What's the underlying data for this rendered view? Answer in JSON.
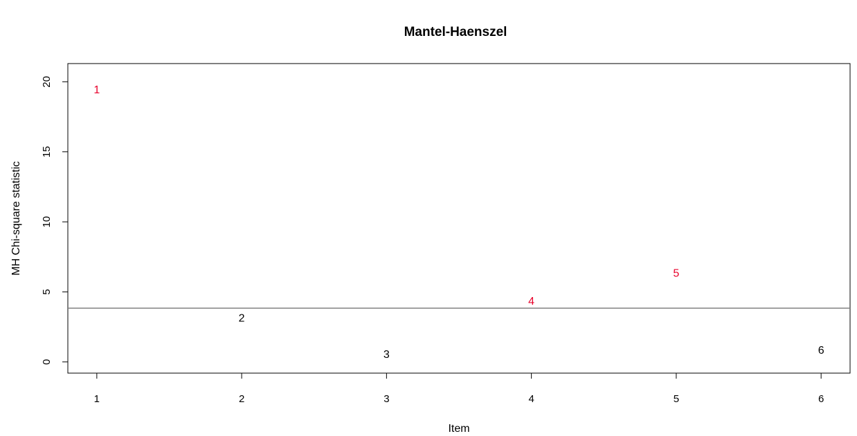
{
  "chart_data": {
    "type": "scatter",
    "title": "Mantel-Haenszel",
    "xlabel": "Item",
    "ylabel": "MH Chi-square statistic",
    "xlim": [
      0.8,
      6.2
    ],
    "ylim": [
      -0.8,
      21.3
    ],
    "x_ticks": [
      "1",
      "2",
      "3",
      "4",
      "5",
      "6"
    ],
    "y_ticks": [
      "0",
      "5",
      "10",
      "15",
      "20"
    ],
    "threshold": 3.84,
    "grid": false,
    "points": [
      {
        "x": 1,
        "y": 19.4,
        "label": "1",
        "flagged": true
      },
      {
        "x": 2,
        "y": 3.1,
        "label": "2",
        "flagged": false
      },
      {
        "x": 3,
        "y": 0.5,
        "label": "3",
        "flagged": false
      },
      {
        "x": 4,
        "y": 4.3,
        "label": "4",
        "flagged": true
      },
      {
        "x": 5,
        "y": 6.3,
        "label": "5",
        "flagged": true
      },
      {
        "x": 6,
        "y": 0.8,
        "label": "6",
        "flagged": false
      }
    ],
    "colors": {
      "flagged": "#e8002a",
      "normal": "#000000",
      "threshold_line": "#808080"
    }
  }
}
